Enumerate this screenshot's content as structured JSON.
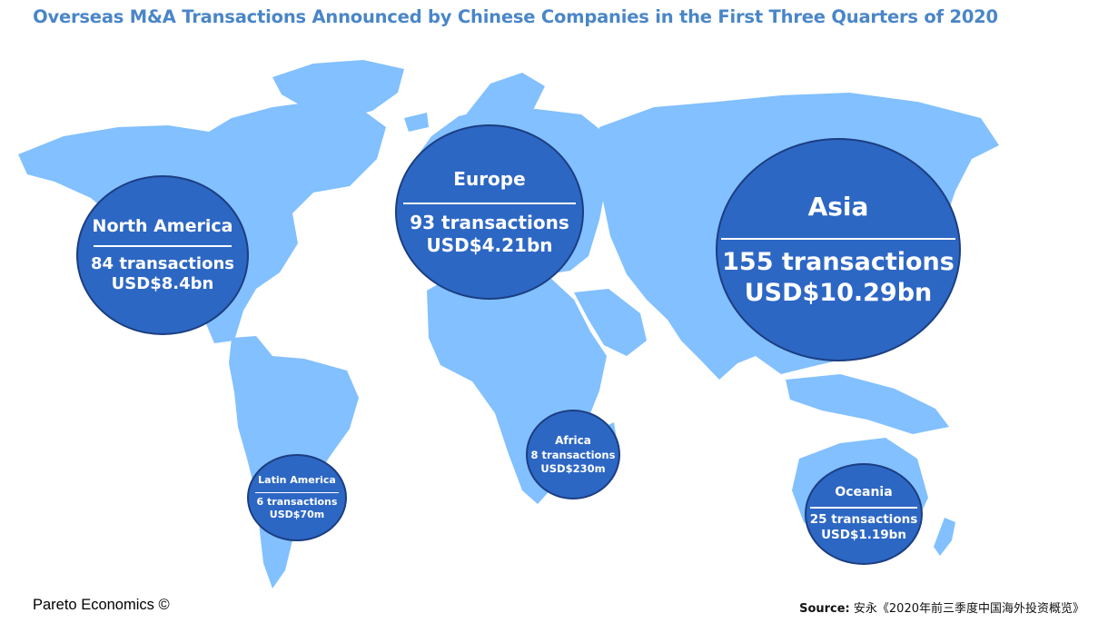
{
  "title": "Overseas M&A Transactions Announced by Chinese Companies in the First Three Quarters of 2020",
  "colors": {
    "land": "#82c0ff",
    "bubble": "#2d67c4",
    "title": "#4a86c8"
  },
  "regions": [
    {
      "name": "North America",
      "transactions": "84 transactions",
      "value": "USD$8.4bn"
    },
    {
      "name": "Europe",
      "transactions": "93 transactions",
      "value": "USD$4.21bn"
    },
    {
      "name": "Asia",
      "transactions": "155 transactions",
      "value": "USD$10.29bn"
    },
    {
      "name": "Africa",
      "transactions": "8 transactions",
      "value": "USD$230m"
    },
    {
      "name": "Latin America",
      "transactions": "6 transactions",
      "value": "USD$70m"
    },
    {
      "name": "Oceania",
      "transactions": "25 transactions",
      "value": "USD$1.19bn"
    }
  ],
  "credit": "Pareto Economics ©",
  "source": {
    "label": "Source:",
    "text": "安永《2020年前三季度中国海外投资概览》"
  }
}
